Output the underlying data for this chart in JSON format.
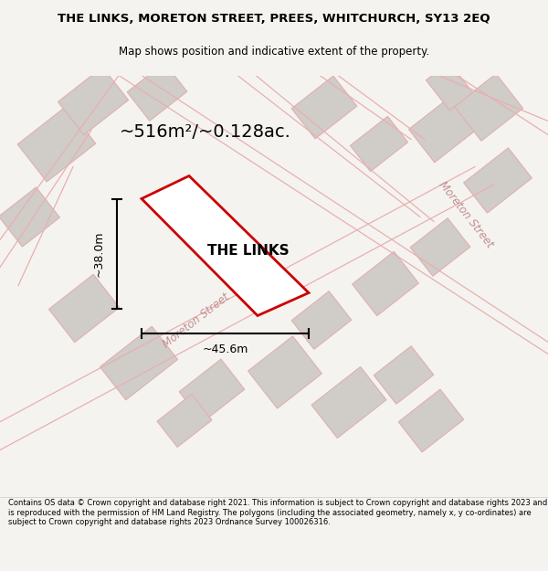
{
  "title_line1": "THE LINKS, MORETON STREET, PREES, WHITCHURCH, SY13 2EQ",
  "title_line2": "Map shows position and indicative extent of the property.",
  "footer_text": "Contains OS data © Crown copyright and database right 2021. This information is subject to Crown copyright and database rights 2023 and is reproduced with the permission of HM Land Registry. The polygons (including the associated geometry, namely x, y co-ordinates) are subject to Crown copyright and database rights 2023 Ordnance Survey 100026316.",
  "area_label": "~516m²/~0.128ac.",
  "property_label": "THE LINKS",
  "dim_width": "~45.6m",
  "dim_height": "~38.0m",
  "bg_color": "#f5f3f0",
  "map_bg": "#f5f3f0",
  "property_fill": "white",
  "property_edge": "#cc0000",
  "road_color": "#e8b0b0",
  "building_color": "#d0ccc8",
  "building_edge": "#e0b0b0"
}
